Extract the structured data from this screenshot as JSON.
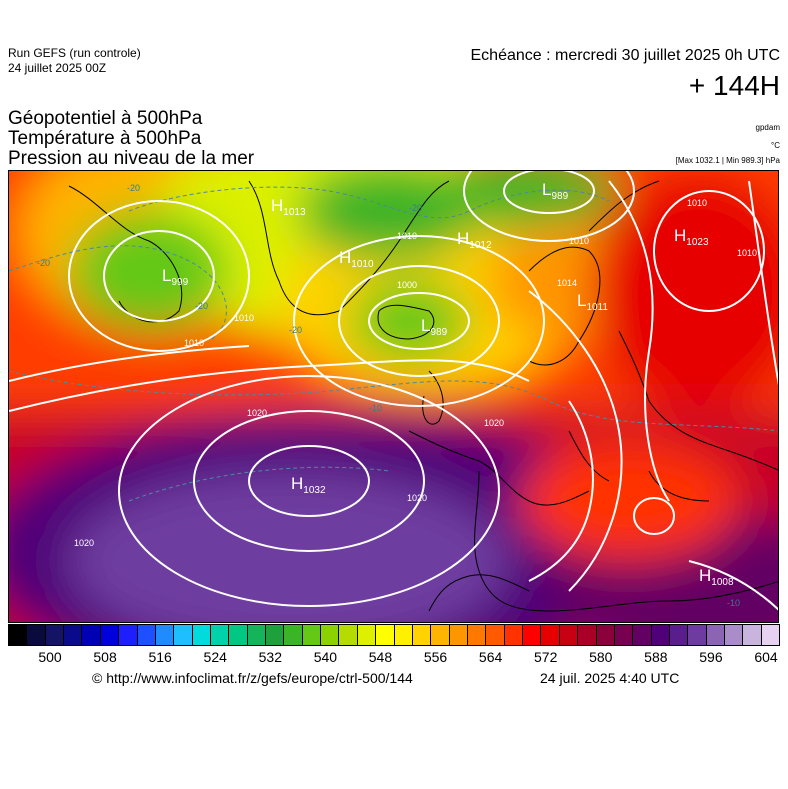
{
  "header": {
    "run_title": "Run GEFS (run controle)",
    "run_date": "24 juillet 2025 00Z",
    "valid_time": "Echéance : mercredi 30 juillet 2025 0h UTC",
    "lead_time": "+ 144H"
  },
  "fields": [
    "Géopotentiel à 500hPa",
    "Température à 500hPa",
    "Pression au niveau de la mer"
  ],
  "units": {
    "geopotential": "gpdam",
    "temperature": "°C",
    "pressure_range": "[Max 1032.1 | Min 989.3] hPa"
  },
  "pressure_centers": [
    {
      "type": "H",
      "value": "1013"
    },
    {
      "type": "H",
      "value": "1010"
    },
    {
      "type": "H",
      "value": "1012"
    },
    {
      "type": "H",
      "value": "1023"
    },
    {
      "type": "L",
      "value": "989"
    },
    {
      "type": "L",
      "value": "989"
    },
    {
      "type": "L",
      "value": "999"
    },
    {
      "type": "L",
      "value": "1011"
    },
    {
      "type": "H",
      "value": "1032"
    },
    {
      "type": "H",
      "value": "1008"
    }
  ],
  "isobar_labels": [
    "1000",
    "1010",
    "1010",
    "1010",
    "1010",
    "1014",
    "1020",
    "1020",
    "1020",
    "1020",
    "1010",
    "1010"
  ],
  "temperature_labels": [
    "-20",
    "-20",
    "-20",
    "-20",
    "-20",
    "-10",
    "-10"
  ],
  "colorbar": {
    "ticks": [
      "500",
      "508",
      "516",
      "524",
      "532",
      "540",
      "548",
      "556",
      "564",
      "572",
      "580",
      "588",
      "596",
      "604"
    ],
    "colors": [
      "#000000",
      "#0a0a3c",
      "#141464",
      "#0a0a8c",
      "#0000b4",
      "#0000dc",
      "#1e1eff",
      "#1e50ff",
      "#1e8cff",
      "#1ebeff",
      "#00dcdc",
      "#00d2aa",
      "#00c882",
      "#14b45a",
      "#1ea03c",
      "#3cb428",
      "#64c814",
      "#8cd200",
      "#b4dc00",
      "#dcf000",
      "#ffff00",
      "#fff000",
      "#ffd200",
      "#ffb400",
      "#ff9600",
      "#ff7800",
      "#ff5a00",
      "#ff3200",
      "#ff0000",
      "#e60000",
      "#c80014",
      "#aa0028",
      "#8c003c",
      "#780050",
      "#640064",
      "#500078",
      "#5a1e8c",
      "#6e3ca0",
      "#8c64b4",
      "#aa8cc8",
      "#c8b4dc",
      "#e6d2f0"
    ]
  },
  "footer": {
    "credit": "© http://www.infoclimat.fr/z/gefs/europe/ctrl-500/144",
    "issued": "24 juil. 2025  4:40 UTC"
  }
}
